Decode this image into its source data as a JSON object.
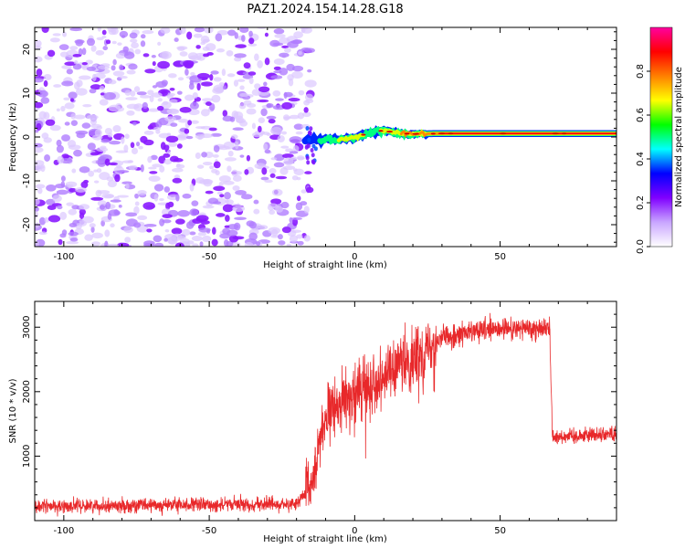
{
  "title": "PAZ1.2024.154.14.28.G18",
  "chart_data": [
    {
      "type": "heatmap",
      "xlabel": "Height of straight line (km)",
      "ylabel": "Frequency (Hz)",
      "xlim": [
        -110,
        90
      ],
      "ylim": [
        -25,
        25
      ],
      "xticks": [
        -100,
        -50,
        0,
        50
      ],
      "xtick_labels": [
        "-100",
        "-50",
        "0",
        "50"
      ],
      "yticks": [
        -20,
        -10,
        0,
        10,
        20
      ],
      "ytick_labels": [
        "-20",
        "-10",
        "0",
        "10",
        "20"
      ],
      "grid": false,
      "noise_region": {
        "x_range": [
          -110,
          -15
        ],
        "y_range": [
          -25,
          25
        ],
        "level": 0.08
      },
      "signal_ridge": [
        {
          "x": -17,
          "y": -0.5,
          "level": 0.3
        },
        {
          "x": -12,
          "y": -0.7,
          "level": 0.45
        },
        {
          "x": -5,
          "y": -0.5,
          "level": 0.6
        },
        {
          "x": 0,
          "y": -0.2,
          "level": 0.65
        },
        {
          "x": 5,
          "y": 1.0,
          "level": 0.55
        },
        {
          "x": 10,
          "y": 1.5,
          "level": 0.6
        },
        {
          "x": 15,
          "y": 0.8,
          "level": 0.7
        },
        {
          "x": 22,
          "y": 0.7,
          "level": 0.75
        },
        {
          "x": 30,
          "y": 0.8,
          "level": 0.85
        },
        {
          "x": 50,
          "y": 0.8,
          "level": 0.88
        },
        {
          "x": 70,
          "y": 0.8,
          "level": 0.9
        },
        {
          "x": 90,
          "y": 0.8,
          "level": 0.9
        }
      ],
      "colorbar": {
        "label": "Normalized spectral amplitude",
        "range": [
          0,
          1
        ],
        "ticks": [
          0.0,
          0.2,
          0.4,
          0.6,
          0.8
        ],
        "tick_labels": [
          "0.0",
          "0.2",
          "0.4",
          "0.6",
          "0.8"
        ],
        "colors": [
          "#ffffff",
          "#c9a6ff",
          "#8000ff",
          "#0000ff",
          "#00ffff",
          "#00ff00",
          "#ffff00",
          "#ff8000",
          "#ff0000",
          "#ff00a0"
        ]
      }
    },
    {
      "type": "line",
      "xlabel": "Height of straight line (km)",
      "ylabel": "SNR (10 * v/v)",
      "xlim": [
        -110,
        90
      ],
      "ylim": [
        0,
        3400
      ],
      "xticks": [
        -100,
        -50,
        0,
        50
      ],
      "xtick_labels": [
        "-100",
        "-50",
        "0",
        "50"
      ],
      "yticks": [
        1000,
        2000,
        3000
      ],
      "ytick_labels": [
        "1000",
        "2000",
        "3000"
      ],
      "grid": false,
      "series": [
        {
          "color": "#e8282a",
          "trend": [
            {
              "x": -110,
              "y": 220
            },
            {
              "x": -20,
              "y": 260
            },
            {
              "x": -15,
              "y": 500
            },
            {
              "x": -11,
              "y": 1500
            },
            {
              "x": -5,
              "y": 1850
            },
            {
              "x": 0,
              "y": 1950
            },
            {
              "x": 5,
              "y": 2100
            },
            {
              "x": 10,
              "y": 2250
            },
            {
              "x": 20,
              "y": 2500
            },
            {
              "x": 25,
              "y": 2700
            },
            {
              "x": 30,
              "y": 2850
            },
            {
              "x": 45,
              "y": 2950
            },
            {
              "x": 67,
              "y": 3000
            },
            {
              "x": 68,
              "y": 1300
            },
            {
              "x": 90,
              "y": 1350
            }
          ]
        }
      ]
    }
  ]
}
